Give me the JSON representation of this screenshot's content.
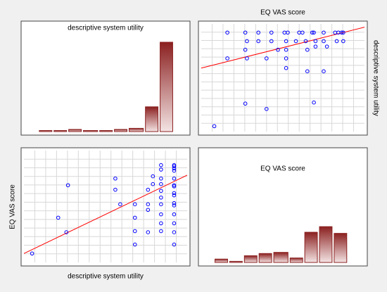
{
  "chart_data": [
    {
      "type": "histogram",
      "title": "descriptive system utility",
      "bins": [
        9,
        18,
        27,
        36,
        46,
        55,
        64,
        74,
        83,
        92
      ],
      "values": [
        1,
        1,
        2,
        1,
        1,
        2,
        3,
        23,
        83
      ],
      "xlim": [
        0,
        100
      ],
      "ylim": [
        0,
        100
      ],
      "color": "#8b2020"
    },
    {
      "type": "scatter",
      "title": "EQ VAS score",
      "ylabel": "descriptive system utility",
      "x": [
        16,
        27,
        35,
        43,
        51,
        53,
        60,
        62,
        68,
        69,
        75,
        82,
        84,
        86,
        87,
        28,
        35,
        43,
        52,
        58,
        64,
        70,
        75,
        83,
        87,
        27,
        47,
        52,
        65,
        70,
        77,
        16,
        28,
        40,
        52,
        52,
        65,
        75,
        27,
        40,
        69,
        8
      ],
      "y": [
        92,
        92,
        92,
        92,
        92,
        92,
        92,
        92,
        92,
        92,
        92,
        92,
        92,
        92,
        92,
        84,
        84,
        84,
        84,
        84,
        84,
        84,
        84,
        84,
        84,
        76,
        76,
        76,
        76,
        79,
        79,
        68,
        68,
        68,
        68,
        59,
        56,
        56,
        26,
        21,
        27,
        5
      ],
      "trend": {
        "x": [
          0,
          100
        ],
        "y": [
          59,
          97
        ],
        "color": "#ff0000"
      },
      "xlim": [
        0,
        100
      ],
      "ylim": [
        0,
        100
      ],
      "grid": true,
      "color": "#0000ff"
    },
    {
      "type": "scatter",
      "xlabel": "descriptive system utility",
      "ylabel": "EQ VAS score",
      "x": [
        92,
        92,
        92,
        92,
        92,
        92,
        92,
        92,
        92,
        92,
        92,
        92,
        92,
        92,
        92,
        84,
        84,
        84,
        84,
        84,
        84,
        84,
        84,
        84,
        84,
        76,
        76,
        76,
        76,
        79,
        79,
        68,
        68,
        68,
        68,
        59,
        56,
        56,
        26,
        21,
        27,
        5
      ],
      "y": [
        16,
        27,
        35,
        43,
        51,
        53,
        60,
        62,
        68,
        69,
        75,
        82,
        84,
        86,
        87,
        28,
        35,
        43,
        52,
        58,
        64,
        70,
        75,
        83,
        87,
        27,
        47,
        52,
        65,
        70,
        77,
        16,
        28,
        40,
        52,
        52,
        65,
        75,
        27,
        40,
        69,
        8
      ],
      "trend": {
        "x": [
          0,
          100
        ],
        "y": [
          8,
          78
        ],
        "color": "#ff0000"
      },
      "xlim": [
        0,
        100
      ],
      "ylim": [
        0,
        100
      ],
      "grid": true,
      "color": "#0000ff"
    },
    {
      "type": "histogram",
      "title": "EQ VAS score",
      "bins": [
        8,
        17,
        26,
        35,
        44,
        54,
        63,
        72,
        81,
        90
      ],
      "values": [
        3,
        1,
        6,
        8,
        9,
        4,
        27,
        32,
        26
      ],
      "xlim": [
        0,
        100
      ],
      "ylim": [
        0,
        100
      ],
      "color": "#8b2020"
    }
  ]
}
